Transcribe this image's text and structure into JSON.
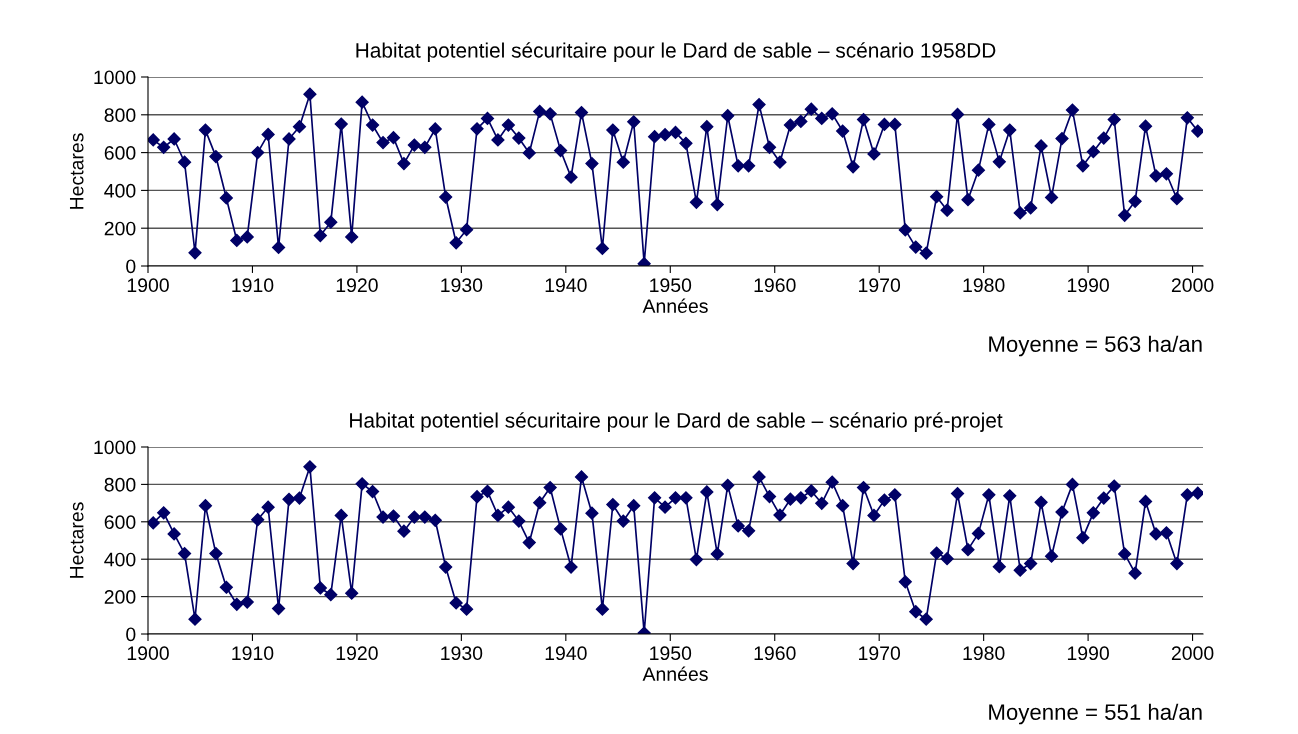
{
  "chart_data": [
    {
      "type": "line",
      "title": "Habitat potentiel sécuritaire pour le Dard de sable – scénario 1958DD",
      "xlabel": "Années",
      "ylabel": "Hectares",
      "x": [
        1900.5,
        1901.5,
        1902.5,
        1903.5,
        1904.5,
        1905.5,
        1906.5,
        1907.5,
        1908.5,
        1909.5,
        1910.5,
        1911.5,
        1912.5,
        1913.5,
        1914.5,
        1915.5,
        1916.5,
        1917.5,
        1918.5,
        1919.5,
        1920.5,
        1921.5,
        1922.5,
        1923.5,
        1924.5,
        1925.5,
        1926.5,
        1927.5,
        1928.5,
        1929.5,
        1930.5,
        1931.5,
        1932.5,
        1933.5,
        1934.5,
        1935.5,
        1936.5,
        1937.5,
        1938.5,
        1939.5,
        1940.5,
        1941.5,
        1942.5,
        1943.5,
        1944.5,
        1945.5,
        1946.5,
        1947.5,
        1948.5,
        1949.5,
        1950.5,
        1951.5,
        1952.5,
        1953.5,
        1954.5,
        1955.5,
        1956.5,
        1957.5,
        1958.5,
        1959.5,
        1960.5,
        1961.5,
        1962.5,
        1963.5,
        1964.5,
        1965.5,
        1966.5,
        1967.5,
        1968.5,
        1969.5,
        1970.5,
        1971.5,
        1972.5,
        1973.5,
        1974.5,
        1975.5,
        1976.5,
        1977.5,
        1978.5,
        1979.5,
        1980.5,
        1981.5,
        1982.5,
        1983.5,
        1984.5,
        1985.5,
        1986.5,
        1987.5,
        1988.5,
        1989.5,
        1990.5,
        1991.5,
        1992.5,
        1993.5,
        1994.5,
        1995.5,
        1996.5,
        1997.5,
        1998.5,
        1999.5,
        2000.5
      ],
      "series": [
        {
          "color": "#000066",
          "values": [
            667,
            628,
            672,
            549,
            70,
            719,
            579,
            360,
            135,
            154,
            600,
            696,
            98,
            672,
            737,
            909,
            161,
            232,
            751,
            154,
            867,
            746,
            653,
            679,
            542,
            640,
            628,
            725,
            365,
            123,
            192,
            726,
            781,
            667,
            746,
            677,
            598,
            818,
            805,
            611,
            470,
            812,
            542,
            93,
            719,
            549,
            763,
            12,
            684,
            695,
            707,
            649,
            337,
            737,
            325,
            795,
            530,
            530,
            854,
            628,
            549,
            746,
            765,
            830,
            781,
            805,
            714,
            525,
            775,
            593,
            749,
            749,
            191,
            100,
            68,
            367,
            295,
            802,
            351,
            507,
            749,
            551,
            719,
            281,
            307,
            635,
            363,
            674,
            825,
            530,
            605,
            677,
            775,
            268,
            342,
            740,
            477,
            488,
            356,
            784,
            714
          ]
        }
      ],
      "xlim": [
        1900,
        2001
      ],
      "xticks": [
        1900,
        1910,
        1920,
        1930,
        1940,
        1950,
        1960,
        1970,
        1980,
        1990,
        2000
      ],
      "ylim": [
        0,
        1000
      ],
      "yticks": [
        0,
        200,
        400,
        600,
        800,
        1000
      ],
      "grid": "y",
      "marker": "diamond",
      "line_style": "solid",
      "annotations": [
        "Moyenne = 563 ha/an"
      ]
    },
    {
      "type": "line",
      "title": "Habitat potentiel sécuritaire pour le Dard de sable – scénario pré-projet",
      "xlabel": "Années",
      "ylabel": "Hectares",
      "x": [
        1900.5,
        1901.5,
        1902.5,
        1903.5,
        1904.5,
        1905.5,
        1906.5,
        1907.5,
        1908.5,
        1909.5,
        1910.5,
        1911.5,
        1912.5,
        1913.5,
        1914.5,
        1915.5,
        1916.5,
        1917.5,
        1918.5,
        1919.5,
        1920.5,
        1921.5,
        1922.5,
        1923.5,
        1924.5,
        1925.5,
        1926.5,
        1927.5,
        1928.5,
        1929.5,
        1930.5,
        1931.5,
        1932.5,
        1933.5,
        1934.5,
        1935.5,
        1936.5,
        1937.5,
        1938.5,
        1939.5,
        1940.5,
        1941.5,
        1942.5,
        1943.5,
        1944.5,
        1945.5,
        1946.5,
        1947.5,
        1948.5,
        1949.5,
        1950.5,
        1951.5,
        1952.5,
        1953.5,
        1954.5,
        1955.5,
        1956.5,
        1957.5,
        1958.5,
        1959.5,
        1960.5,
        1961.5,
        1962.5,
        1963.5,
        1964.5,
        1965.5,
        1966.5,
        1967.5,
        1968.5,
        1969.5,
        1970.5,
        1971.5,
        1972.5,
        1973.5,
        1974.5,
        1975.5,
        1976.5,
        1977.5,
        1978.5,
        1979.5,
        1980.5,
        1981.5,
        1982.5,
        1983.5,
        1984.5,
        1985.5,
        1986.5,
        1987.5,
        1988.5,
        1989.5,
        1990.5,
        1991.5,
        1992.5,
        1993.5,
        1994.5,
        1995.5,
        1996.5,
        1997.5,
        1998.5,
        1999.5,
        2000.5
      ],
      "series": [
        {
          "color": "#000066",
          "values": [
            594,
            648,
            535,
            430,
            79,
            686,
            430,
            250,
            159,
            171,
            611,
            678,
            136,
            720,
            727,
            894,
            246,
            210,
            634,
            218,
            803,
            762,
            625,
            631,
            550,
            625,
            625,
            608,
            358,
            166,
            133,
            734,
            763,
            634,
            678,
            604,
            489,
            702,
            783,
            562,
            358,
            840,
            646,
            133,
            692,
            604,
            686,
            5,
            728,
            678,
            728,
            728,
            398,
            760,
            428,
            795,
            578,
            552,
            840,
            735,
            636,
            721,
            728,
            765,
            699,
            812,
            686,
            377,
            783,
            634,
            716,
            744,
            279,
            119,
            79,
            433,
            403,
            751,
            451,
            538,
            744,
            360,
            739,
            341,
            377,
            704,
            416,
            652,
            800,
            515,
            648,
            727,
            791,
            428,
            325,
            709,
            535,
            541,
            377,
            744,
            753
          ]
        }
      ],
      "xlim": [
        1900,
        2001
      ],
      "xticks": [
        1900,
        1910,
        1920,
        1930,
        1940,
        1950,
        1960,
        1970,
        1980,
        1990,
        2000
      ],
      "ylim": [
        0,
        1000
      ],
      "yticks": [
        0,
        200,
        400,
        600,
        800,
        1000
      ],
      "grid": "y",
      "marker": "diamond",
      "line_style": "solid",
      "annotations": [
        "Moyenne = 551 ha/an"
      ]
    }
  ]
}
